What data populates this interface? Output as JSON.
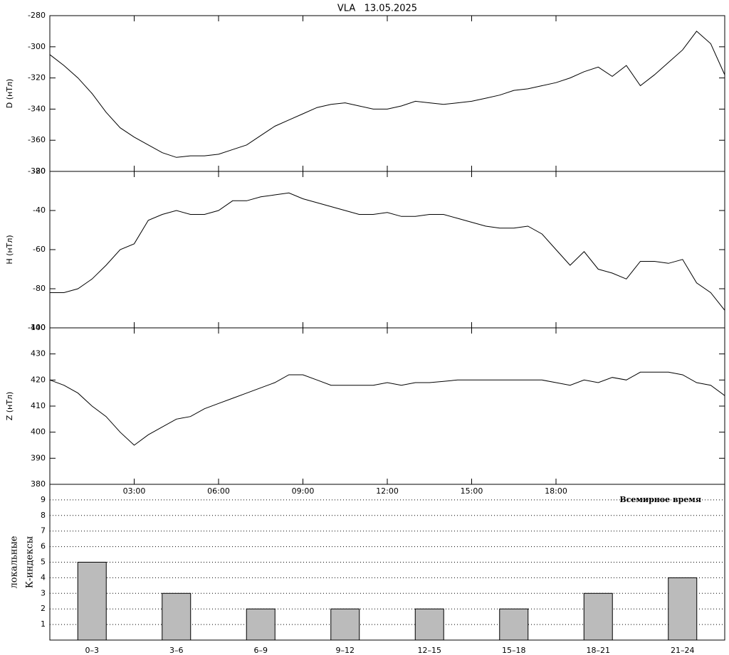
{
  "title": "VLA   13.05.2025",
  "chart_data": [
    {
      "type": "line",
      "ylabel": "D (нТл)",
      "color": "#000000",
      "x": [
        0,
        0.5,
        1,
        1.5,
        2,
        2.5,
        3,
        3.5,
        4,
        4.5,
        5,
        5.5,
        6,
        6.5,
        7,
        7.5,
        8,
        8.5,
        9,
        9.5,
        10,
        10.5,
        11,
        11.5,
        12,
        12.5,
        13,
        13.5,
        14,
        14.5,
        15,
        15.5,
        16,
        16.5,
        17,
        17.5,
        18,
        18.5,
        19,
        19.5,
        20,
        20.5,
        21,
        21.5,
        22,
        22.5,
        23,
        23.5,
        24
      ],
      "values": [
        -305,
        -312,
        -320,
        -330,
        -342,
        -352,
        -358,
        -363,
        -368,
        -371,
        -370,
        -370,
        -369,
        -366,
        -363,
        -357,
        -351,
        -347,
        -343,
        -339,
        -337,
        -336,
        -338,
        -340,
        -340,
        -338,
        -335,
        -336,
        -337,
        -336,
        -335,
        -333,
        -331,
        -328,
        -327,
        -325,
        -323,
        -320,
        -316,
        -313,
        -319,
        -312,
        -325,
        -318,
        -310,
        -302,
        -290,
        -298,
        -318
      ],
      "xlim": [
        0,
        24
      ],
      "ylim": [
        -380,
        -280
      ],
      "yticks": [
        -380,
        -360,
        -340,
        -320,
        -300,
        -280
      ]
    },
    {
      "type": "line",
      "ylabel": "H (нТл)",
      "color": "#000000",
      "x": [
        0,
        0.5,
        1,
        1.5,
        2,
        2.5,
        3,
        3.5,
        4,
        4.5,
        5,
        5.5,
        6,
        6.5,
        7,
        7.5,
        8,
        8.5,
        9,
        9.5,
        10,
        10.5,
        11,
        11.5,
        12,
        12.5,
        13,
        13.5,
        14,
        14.5,
        15,
        15.5,
        16,
        16.5,
        17,
        17.5,
        18,
        18.5,
        19,
        19.5,
        20,
        20.5,
        21,
        21.5,
        22,
        22.5,
        23,
        23.5,
        24
      ],
      "values": [
        -82,
        -82,
        -80,
        -75,
        -68,
        -60,
        -57,
        -45,
        -42,
        -40,
        -42,
        -42,
        -40,
        -35,
        -35,
        -33,
        -32,
        -31,
        -34,
        -36,
        -38,
        -40,
        -42,
        -42,
        -41,
        -43,
        -43,
        -42,
        -42,
        -44,
        -46,
        -48,
        -49,
        -49,
        -48,
        -52,
        -60,
        -68,
        -61,
        -70,
        -72,
        -75,
        -66,
        -66,
        -67,
        -65,
        -77,
        -82,
        -91
      ],
      "xlim": [
        0,
        24
      ],
      "ylim": [
        -100,
        -20
      ],
      "yticks": [
        -100,
        -80,
        -60,
        -40,
        -20
      ]
    },
    {
      "type": "line",
      "ylabel": "Z (нТл)",
      "color": "#000000",
      "x": [
        0,
        0.5,
        1,
        1.5,
        2,
        2.5,
        3,
        3.5,
        4,
        4.5,
        5,
        5.5,
        6,
        6.5,
        7,
        7.5,
        8,
        8.5,
        9,
        9.5,
        10,
        10.5,
        11,
        11.5,
        12,
        12.5,
        13,
        13.5,
        14,
        14.5,
        15,
        15.5,
        16,
        16.5,
        17,
        17.5,
        18,
        18.5,
        19,
        19.5,
        20,
        20.5,
        21,
        21.5,
        22,
        22.5,
        23,
        23.5,
        24
      ],
      "values": [
        420,
        418,
        415,
        410,
        406,
        400,
        395,
        399,
        402,
        405,
        406,
        409,
        411,
        413,
        415,
        417,
        419,
        422,
        422,
        420,
        418,
        418,
        418,
        418,
        419,
        418,
        419,
        419,
        419.5,
        420,
        420,
        420,
        420,
        420,
        420,
        420,
        419,
        418,
        420,
        419,
        421,
        420,
        423,
        423,
        423,
        422,
        419,
        418,
        414
      ],
      "xlim": [
        0,
        24
      ],
      "ylim": [
        380,
        440
      ],
      "yticks": [
        380,
        390,
        400,
        410,
        420,
        430,
        440
      ],
      "xticks": [
        {
          "value": 3,
          "label": "03:00"
        },
        {
          "value": 6,
          "label": "06:00"
        },
        {
          "value": 9,
          "label": "09:00"
        },
        {
          "value": 12,
          "label": "12:00"
        },
        {
          "value": 15,
          "label": "15:00"
        },
        {
          "value": 18,
          "label": "18:00"
        }
      ]
    },
    {
      "type": "bar",
      "ylabel": [
        "локальные",
        "К-индексы"
      ],
      "annotation": "Всемирное время",
      "color": "#bbbbbb",
      "grid": true,
      "categories": [
        "0–3",
        "3–6",
        "6–9",
        "9–12",
        "12–15",
        "15–18",
        "18–21",
        "21–24"
      ],
      "values": [
        5,
        3,
        2,
        2,
        2,
        2,
        3,
        4
      ],
      "ylim": [
        0,
        10
      ],
      "yticks": [
        1,
        2,
        3,
        4,
        5,
        6,
        7,
        8,
        9
      ]
    }
  ]
}
